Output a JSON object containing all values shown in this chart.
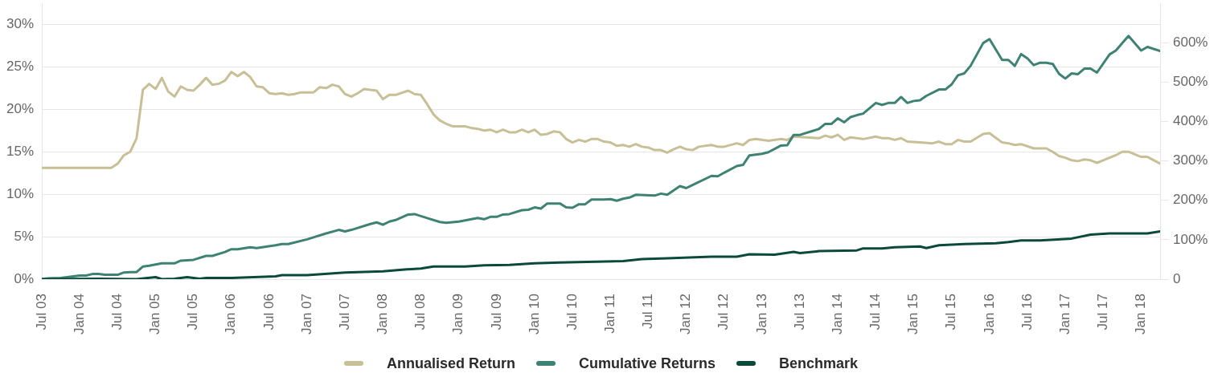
{
  "chart_data": {
    "type": "line",
    "legend": "bottom",
    "grid": "y",
    "xlim": [
      "2003-07",
      "2018-04"
    ],
    "xticks": [
      {
        "value": "2003-07",
        "label": "Jul 03"
      },
      {
        "value": "2004-01",
        "label": "Jan 04"
      },
      {
        "value": "2004-07",
        "label": "Jul 04"
      },
      {
        "value": "2005-01",
        "label": "Jan 05"
      },
      {
        "value": "2005-07",
        "label": "Jul 05"
      },
      {
        "value": "2006-01",
        "label": "Jan 06"
      },
      {
        "value": "2006-07",
        "label": "Jul 06"
      },
      {
        "value": "2007-01",
        "label": "Jan 07"
      },
      {
        "value": "2007-07",
        "label": "Jul 07"
      },
      {
        "value": "2008-01",
        "label": "Jan 08"
      },
      {
        "value": "2008-07",
        "label": "Jul 08"
      },
      {
        "value": "2009-01",
        "label": "Jan 09"
      },
      {
        "value": "2009-07",
        "label": "Jul 09"
      },
      {
        "value": "2010-01",
        "label": "Jan 10"
      },
      {
        "value": "2010-07",
        "label": "Jul 10"
      },
      {
        "value": "2011-01",
        "label": "Jan 11"
      },
      {
        "value": "2011-07",
        "label": "Jul 11"
      },
      {
        "value": "2012-01",
        "label": "Jan 12"
      },
      {
        "value": "2012-07",
        "label": "Jul 12"
      },
      {
        "value": "2013-01",
        "label": "Jan 13"
      },
      {
        "value": "2013-07",
        "label": "Jul 13"
      },
      {
        "value": "2014-01",
        "label": "Jan 14"
      },
      {
        "value": "2014-07",
        "label": "Jul 14"
      },
      {
        "value": "2015-01",
        "label": "Jan 15"
      },
      {
        "value": "2015-07",
        "label": "Jul 15"
      },
      {
        "value": "2016-01",
        "label": "Jan 16"
      },
      {
        "value": "2016-07",
        "label": "Jul 16"
      },
      {
        "value": "2017-01",
        "label": "Jan 17"
      },
      {
        "value": "2017-07",
        "label": "Jul 17"
      },
      {
        "value": "2018-01",
        "label": "Jan 18"
      }
    ],
    "ylim": [
      0,
      32.5
    ],
    "yticks": [
      {
        "value": 0,
        "label": "0%"
      },
      {
        "value": 5,
        "label": "5%"
      },
      {
        "value": 10,
        "label": "10%"
      },
      {
        "value": 15,
        "label": "15%"
      },
      {
        "value": 20,
        "label": "20%"
      },
      {
        "value": 25,
        "label": "25%"
      },
      {
        "value": 30,
        "label": "30%"
      }
    ],
    "y2lim": [
      0,
      700
    ],
    "y2ticks": [
      {
        "value": 0,
        "label": "0"
      },
      {
        "value": 100,
        "label": "100%"
      },
      {
        "value": 200,
        "label": "200%"
      },
      {
        "value": 300,
        "label": "300%"
      },
      {
        "value": 400,
        "label": "400%"
      },
      {
        "value": 500,
        "label": "500%"
      },
      {
        "value": 600,
        "label": "600%"
      }
    ],
    "series": [
      {
        "name": "Annualised Return",
        "color": "#c8bf97",
        "x": [
          "2003-07",
          "2004-06",
          "2004-07",
          "2004-08",
          "2004-09",
          "2004-10",
          "2004-11",
          "2004-12",
          "2005-01",
          "2005-02",
          "2005-03",
          "2005-04",
          "2005-05",
          "2005-06",
          "2005-07",
          "2005-08",
          "2005-09",
          "2005-10",
          "2005-11",
          "2005-12",
          "2006-01",
          "2006-02",
          "2006-03",
          "2006-04",
          "2006-05",
          "2006-06",
          "2006-07",
          "2006-08",
          "2006-09",
          "2006-10",
          "2006-11",
          "2006-12",
          "2007-02",
          "2007-03",
          "2007-04",
          "2007-05",
          "2007-06",
          "2007-07",
          "2007-08",
          "2007-09",
          "2007-10",
          "2007-12",
          "2008-01",
          "2008-02",
          "2008-03",
          "2008-05",
          "2008-06",
          "2008-07",
          "2008-08",
          "2008-09",
          "2008-10",
          "2008-11",
          "2008-12",
          "2009-02",
          "2009-03",
          "2009-04",
          "2009-05",
          "2009-06",
          "2009-07",
          "2009-08",
          "2009-09",
          "2009-10",
          "2009-11",
          "2009-12",
          "2010-01",
          "2010-02",
          "2010-03",
          "2010-04",
          "2010-05",
          "2010-06",
          "2010-07",
          "2010-08",
          "2010-09",
          "2010-10",
          "2010-11",
          "2010-12",
          "2011-01",
          "2011-02",
          "2011-03",
          "2011-04",
          "2011-05",
          "2011-06",
          "2011-07",
          "2011-08",
          "2011-09",
          "2011-10",
          "2011-11",
          "2011-12",
          "2012-01",
          "2012-02",
          "2012-03",
          "2012-05",
          "2012-06",
          "2012-07",
          "2012-09",
          "2012-10",
          "2012-11",
          "2012-12",
          "2013-02",
          "2013-04",
          "2013-05",
          "2013-06",
          "2013-08",
          "2013-10",
          "2013-11",
          "2013-12",
          "2014-01",
          "2014-02",
          "2014-03",
          "2014-05",
          "2014-07",
          "2014-08",
          "2014-09",
          "2014-10",
          "2014-11",
          "2014-12",
          "2015-02",
          "2015-04",
          "2015-05",
          "2015-06",
          "2015-07",
          "2015-08",
          "2015-09",
          "2015-10",
          "2015-12",
          "2016-01",
          "2016-03",
          "2016-04",
          "2016-05",
          "2016-06",
          "2016-08",
          "2016-10",
          "2016-11",
          "2016-12",
          "2017-01",
          "2017-02",
          "2017-03",
          "2017-04",
          "2017-05",
          "2017-06",
          "2017-07",
          "2017-09",
          "2017-10",
          "2017-11",
          "2018-01",
          "2018-02",
          "2018-04"
        ],
        "values": [
          13.1,
          13.1,
          13.6,
          14.6,
          15.0,
          16.6,
          22.3,
          23.0,
          22.4,
          23.7,
          22.1,
          21.5,
          22.7,
          22.3,
          22.2,
          22.9,
          23.7,
          22.9,
          23.0,
          23.4,
          24.4,
          23.9,
          24.4,
          23.8,
          22.7,
          22.6,
          21.9,
          21.8,
          21.9,
          21.7,
          21.8,
          22.0,
          22.0,
          22.6,
          22.5,
          22.9,
          22.7,
          21.8,
          21.5,
          21.9,
          22.4,
          22.2,
          21.2,
          21.7,
          21.7,
          22.2,
          21.8,
          21.7,
          20.6,
          19.4,
          18.7,
          18.3,
          18.0,
          18.0,
          17.8,
          17.7,
          17.5,
          17.6,
          17.3,
          17.6,
          17.3,
          17.3,
          17.6,
          17.3,
          17.6,
          17.0,
          17.1,
          17.4,
          17.3,
          16.5,
          16.1,
          16.4,
          16.2,
          16.5,
          16.5,
          16.2,
          16.1,
          15.7,
          15.8,
          15.6,
          15.9,
          15.6,
          15.5,
          15.2,
          15.2,
          14.9,
          15.3,
          15.6,
          15.3,
          15.2,
          15.6,
          15.8,
          15.6,
          15.6,
          16.0,
          15.8,
          16.4,
          16.5,
          16.3,
          16.5,
          16.4,
          16.8,
          16.7,
          16.6,
          16.9,
          16.7,
          17.0,
          16.4,
          16.7,
          16.5,
          16.8,
          16.6,
          16.6,
          16.4,
          16.6,
          16.2,
          16.1,
          16.0,
          16.2,
          15.9,
          15.9,
          16.4,
          16.2,
          16.2,
          17.1,
          17.2,
          16.1,
          16.0,
          15.8,
          15.9,
          15.4,
          15.4,
          15.0,
          14.5,
          14.3,
          14.0,
          13.9,
          14.1,
          14.0,
          13.7,
          14.0,
          14.6,
          15.0,
          15.0,
          14.4,
          14.4,
          13.6
        ]
      },
      {
        "name": "Cumulative Returns",
        "color": "#3e8273",
        "axis": "y2",
        "x": [
          "2003-07",
          "2003-08",
          "2003-10",
          "2003-12",
          "2004-01",
          "2004-02",
          "2004-03",
          "2004-04",
          "2004-05",
          "2004-07",
          "2004-08",
          "2004-09",
          "2004-10",
          "2004-11",
          "2004-12",
          "2005-01",
          "2005-02",
          "2005-04",
          "2005-05",
          "2005-07",
          "2005-09",
          "2005-10",
          "2005-12",
          "2006-01",
          "2006-02",
          "2006-04",
          "2006-05",
          "2006-08",
          "2006-09",
          "2006-10",
          "2007-01",
          "2007-02",
          "2007-04",
          "2007-06",
          "2007-07",
          "2007-08",
          "2007-11",
          "2007-12",
          "2008-01",
          "2008-02",
          "2008-03",
          "2008-05",
          "2008-06",
          "2008-08",
          "2008-10",
          "2008-11",
          "2009-01",
          "2009-04",
          "2009-05",
          "2009-06",
          "2009-07",
          "2009-08",
          "2009-09",
          "2009-11",
          "2009-12",
          "2010-01",
          "2010-02",
          "2010-03",
          "2010-05",
          "2010-06",
          "2010-07",
          "2010-08",
          "2010-09",
          "2010-10",
          "2010-12",
          "2011-01",
          "2011-02",
          "2011-03",
          "2011-04",
          "2011-05",
          "2011-08",
          "2011-09",
          "2011-10",
          "2011-12",
          "2012-01",
          "2012-02",
          "2012-05",
          "2012-06",
          "2012-07",
          "2012-09",
          "2012-10",
          "2012-11",
          "2013-01",
          "2013-02",
          "2013-04",
          "2013-05",
          "2013-06",
          "2013-07",
          "2013-09",
          "2013-10",
          "2013-11",
          "2013-12",
          "2014-01",
          "2014-02",
          "2014-03",
          "2014-04",
          "2014-05",
          "2014-07",
          "2014-08",
          "2014-09",
          "2014-10",
          "2014-11",
          "2014-12",
          "2015-01",
          "2015-02",
          "2015-03",
          "2015-05",
          "2015-06",
          "2015-07",
          "2015-08",
          "2015-09",
          "2015-10",
          "2015-11",
          "2015-12",
          "2016-01",
          "2016-03",
          "2016-04",
          "2016-05",
          "2016-06",
          "2016-07",
          "2016-08",
          "2016-09",
          "2016-10",
          "2016-11",
          "2016-12",
          "2017-01",
          "2017-02",
          "2017-03",
          "2017-04",
          "2017-05",
          "2017-06",
          "2017-08",
          "2017-09",
          "2017-11",
          "2018-01",
          "2018-02",
          "2018-04"
        ],
        "values": [
          0,
          2,
          3,
          7,
          9,
          9,
          13,
          13,
          11,
          11,
          17,
          18,
          18,
          32,
          34,
          37,
          40,
          40,
          47,
          49,
          59,
          59,
          69,
          76,
          76,
          81,
          79,
          86,
          89,
          89,
          101,
          106,
          116,
          125,
          121,
          125,
          140,
          144,
          138,
          146,
          150,
          164,
          165,
          155,
          145,
          143,
          146,
          155,
          152,
          158,
          158,
          164,
          165,
          175,
          176,
          182,
          179,
          192,
          192,
          182,
          181,
          190,
          190,
          202,
          202,
          203,
          199,
          204,
          207,
          214,
          212,
          217,
          214,
          236,
          231,
          239,
          262,
          261,
          270,
          287,
          290,
          314,
          318,
          322,
          339,
          340,
          366,
          366,
          376,
          381,
          394,
          394,
          408,
          398,
          411,
          416,
          420,
          447,
          442,
          447,
          447,
          462,
          447,
          452,
          454,
          465,
          481,
          481,
          494,
          517,
          522,
          541,
          570,
          599,
          609,
          556,
          556,
          541,
          571,
          560,
          543,
          549,
          549,
          546,
          521,
          509,
          522,
          520,
          534,
          534,
          524,
          570,
          580,
          617,
          580,
          589,
          579
        ]
      },
      {
        "name": "Benchmark",
        "color": "#0b4a3b",
        "axis": "y2",
        "x": [
          "2003-07",
          "2004-04",
          "2004-10",
          "2005-01",
          "2005-02",
          "2005-04",
          "2005-06",
          "2005-08",
          "2005-09",
          "2006-01",
          "2006-08",
          "2006-09",
          "2007-01",
          "2007-07",
          "2008-01",
          "2008-04",
          "2008-07",
          "2008-09",
          "2009-02",
          "2009-05",
          "2009-09",
          "2010-01",
          "2010-05",
          "2011-03",
          "2011-06",
          "2011-10",
          "2012-05",
          "2012-09",
          "2012-11",
          "2013-03",
          "2013-06",
          "2013-07",
          "2013-10",
          "2014-04",
          "2014-05",
          "2014-08",
          "2014-10",
          "2015-02",
          "2015-03",
          "2015-05",
          "2015-09",
          "2016-02",
          "2016-04",
          "2016-06",
          "2016-09",
          "2017-02",
          "2017-05",
          "2017-08",
          "2018-02",
          "2018-04"
        ],
        "values": [
          0,
          1,
          0,
          5,
          0,
          1,
          5,
          1,
          3,
          3,
          7,
          10,
          10,
          17,
          20,
          24,
          27,
          32,
          32,
          35,
          36,
          40,
          42,
          46,
          51,
          53,
          57,
          57,
          63,
          62,
          69,
          66,
          71,
          73,
          78,
          78,
          81,
          83,
          79,
          86,
          89,
          91,
          94,
          98,
          98,
          103,
          113,
          116,
          116,
          121
        ]
      }
    ]
  }
}
